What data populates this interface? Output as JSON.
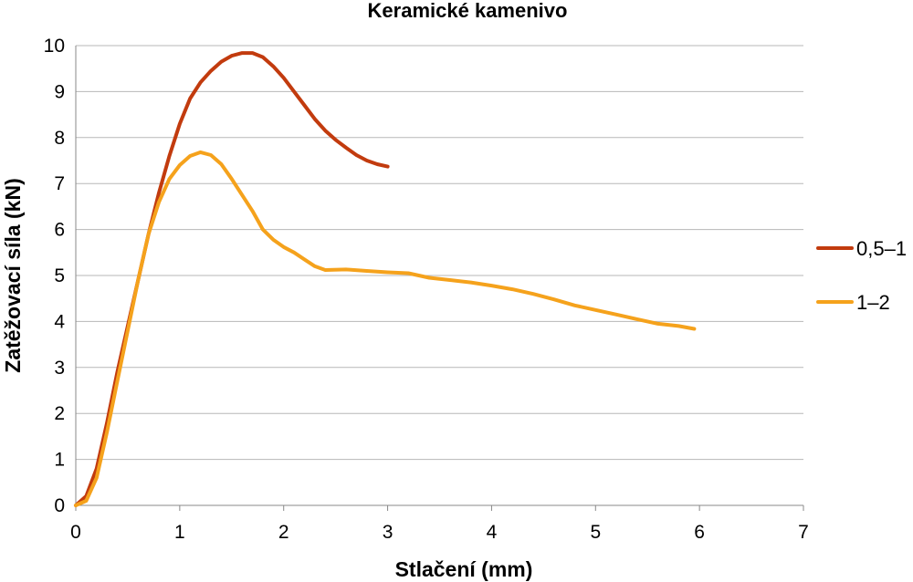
{
  "chart_data": {
    "type": "line",
    "title": "Keramické kamenivo",
    "xlabel": "Stlačení (mm)",
    "ylabel": "Zatěžovací síla (kN)",
    "xlim": [
      0,
      7
    ],
    "ylim": [
      0,
      10
    ],
    "x_ticks": [
      "0",
      "1",
      "2",
      "3",
      "4",
      "5",
      "6",
      "7"
    ],
    "y_ticks": [
      "0",
      "1",
      "2",
      "3",
      "4",
      "5",
      "6",
      "7",
      "8",
      "9",
      "10"
    ],
    "grid": "horizontal",
    "legend_position": "right",
    "series": [
      {
        "name": "0,5–1",
        "color": "#c23b0e",
        "points": [
          [
            0.0,
            0.0
          ],
          [
            0.1,
            0.2
          ],
          [
            0.2,
            0.8
          ],
          [
            0.3,
            1.8
          ],
          [
            0.4,
            2.9
          ],
          [
            0.5,
            3.9
          ],
          [
            0.6,
            4.9
          ],
          [
            0.7,
            5.9
          ],
          [
            0.8,
            6.8
          ],
          [
            0.9,
            7.6
          ],
          [
            1.0,
            8.3
          ],
          [
            1.1,
            8.85
          ],
          [
            1.2,
            9.2
          ],
          [
            1.3,
            9.45
          ],
          [
            1.4,
            9.65
          ],
          [
            1.5,
            9.78
          ],
          [
            1.6,
            9.84
          ],
          [
            1.7,
            9.84
          ],
          [
            1.8,
            9.75
          ],
          [
            1.9,
            9.55
          ],
          [
            2.0,
            9.3
          ],
          [
            2.1,
            9.0
          ],
          [
            2.2,
            8.7
          ],
          [
            2.3,
            8.4
          ],
          [
            2.4,
            8.15
          ],
          [
            2.5,
            7.95
          ],
          [
            2.6,
            7.78
          ],
          [
            2.7,
            7.62
          ],
          [
            2.8,
            7.5
          ],
          [
            2.9,
            7.42
          ],
          [
            3.0,
            7.37
          ]
        ]
      },
      {
        "name": "1–2",
        "color": "#f5a21c",
        "points": [
          [
            0.0,
            0.0
          ],
          [
            0.1,
            0.1
          ],
          [
            0.2,
            0.6
          ],
          [
            0.3,
            1.6
          ],
          [
            0.4,
            2.7
          ],
          [
            0.5,
            3.8
          ],
          [
            0.6,
            4.9
          ],
          [
            0.7,
            5.9
          ],
          [
            0.8,
            6.6
          ],
          [
            0.9,
            7.1
          ],
          [
            1.0,
            7.4
          ],
          [
            1.1,
            7.6
          ],
          [
            1.2,
            7.68
          ],
          [
            1.3,
            7.62
          ],
          [
            1.4,
            7.42
          ],
          [
            1.5,
            7.1
          ],
          [
            1.6,
            6.75
          ],
          [
            1.7,
            6.4
          ],
          [
            1.8,
            6.0
          ],
          [
            1.9,
            5.78
          ],
          [
            2.0,
            5.62
          ],
          [
            2.1,
            5.5
          ],
          [
            2.2,
            5.35
          ],
          [
            2.3,
            5.2
          ],
          [
            2.4,
            5.12
          ],
          [
            2.6,
            5.13
          ],
          [
            2.8,
            5.1
          ],
          [
            3.0,
            5.07
          ],
          [
            3.2,
            5.05
          ],
          [
            3.4,
            4.95
          ],
          [
            3.6,
            4.9
          ],
          [
            3.8,
            4.85
          ],
          [
            4.0,
            4.78
          ],
          [
            4.2,
            4.7
          ],
          [
            4.4,
            4.6
          ],
          [
            4.6,
            4.48
          ],
          [
            4.8,
            4.35
          ],
          [
            5.0,
            4.25
          ],
          [
            5.2,
            4.15
          ],
          [
            5.4,
            4.05
          ],
          [
            5.6,
            3.95
          ],
          [
            5.8,
            3.9
          ],
          [
            5.95,
            3.84
          ]
        ]
      }
    ]
  }
}
